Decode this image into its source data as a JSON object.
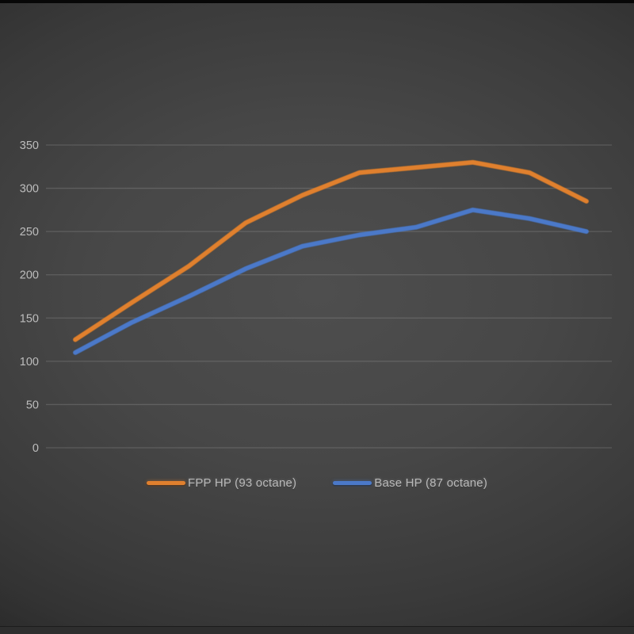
{
  "chart_data": {
    "type": "line",
    "title": "",
    "xlabel": "",
    "ylabel": "",
    "x_axis_labels": "none visible",
    "yticks": [
      0,
      50,
      100,
      150,
      200,
      250,
      300,
      350
    ],
    "ylim": [
      0,
      350
    ],
    "grid": true,
    "legend_position": "bottom",
    "series": [
      {
        "name": "FPP HP (93 octane)",
        "color": "#e0802e",
        "values": [
          125,
          168,
          210,
          260,
          292,
          318,
          324,
          330,
          318,
          285
        ]
      },
      {
        "name": "Base HP (87 octane)",
        "color": "#4b79c9",
        "values": [
          110,
          145,
          175,
          207,
          233,
          246,
          255,
          275,
          265,
          250
        ]
      }
    ]
  },
  "colors": {
    "background_center": "#4b4b4b",
    "background_edge": "#181818",
    "gridline": "rgba(255,255,255,0.14)",
    "tick_text": "#bdbdbd",
    "legend_text": "#b9b9b9"
  }
}
